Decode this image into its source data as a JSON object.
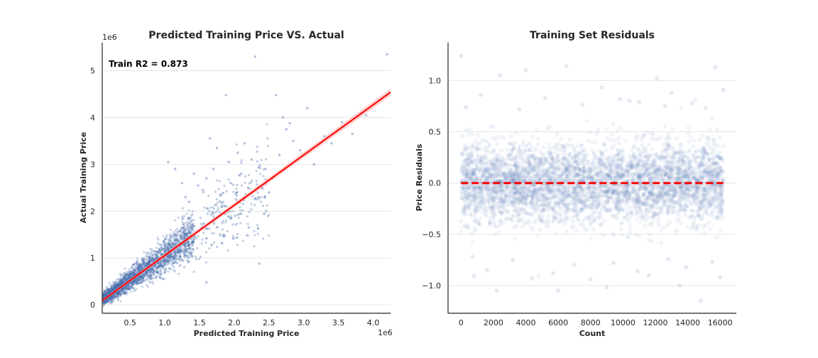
{
  "chart_data": [
    {
      "type": "scatter",
      "title": "Predicted Training Price VS. Actual",
      "xlabel": "Predicted Training Price",
      "ylabel": "Actual Training Price",
      "x_offset_label": "1e6",
      "y_offset_label": "1e6",
      "xlim": [
        100000,
        4250000
      ],
      "ylim": [
        -180000,
        5600000
      ],
      "x_ticks": [
        0.5,
        1.0,
        1.5,
        2.0,
        2.5,
        3.0,
        3.5,
        4.0
      ],
      "x_tick_labels": [
        "0.5",
        "1.0",
        "1.5",
        "2.0",
        "2.5",
        "3.0",
        "3.5",
        "4.0"
      ],
      "y_ticks": [
        0,
        1,
        2,
        3,
        4,
        5
      ],
      "y_tick_labels": [
        "0",
        "1",
        "2",
        "3",
        "4",
        "5"
      ],
      "grid": "horizontal",
      "annotation": "Train R2 = 0.873",
      "point_color": "#4c72b0",
      "fit_line_color": "#ff0000",
      "fit_line": {
        "x": [
          100000,
          4250000
        ],
        "y": [
          90000,
          4540000
        ]
      },
      "series": [
        {
          "points_x": [
            1650000,
            1750000,
            1880000,
            1920000,
            2050000,
            2100000,
            2150000,
            2250000,
            2300000,
            2400000,
            2450000,
            2500000,
            2550000,
            2600000,
            2650000,
            2700000,
            2750000,
            2800000,
            2850000,
            2950000,
            3050000,
            3150000,
            3300000,
            3400000,
            3550000,
            3700000,
            3900000,
            4200000,
            1050000,
            1150000,
            1250000,
            1300000,
            1350000,
            1420000,
            1480000,
            1550000,
            1600000,
            1700000,
            1800000,
            1950000,
            2200000,
            2350000,
            1600000,
            2010000,
            2210000,
            2460000,
            2360000,
            1850000
          ],
          "points_y": [
            3550000,
            3350000,
            4480000,
            3050000,
            3250000,
            2800000,
            3450000,
            3100000,
            5300000,
            2500000,
            2900000,
            2400000,
            2700000,
            4480000,
            3200000,
            4000000,
            3750000,
            3880000,
            3500000,
            3300000,
            4200000,
            3000000,
            3600000,
            3450000,
            3900000,
            3650000,
            4050000,
            5350000,
            3050000,
            2900000,
            2600000,
            2300000,
            2200000,
            2800000,
            2550000,
            2450000,
            2700000,
            2900000,
            2350000,
            2600000,
            2500000,
            2300000,
            480000,
            1900000,
            1650000,
            2000000,
            880000,
            1500000
          ]
        }
      ]
    },
    {
      "type": "scatter",
      "title": "Training Set Residuals",
      "xlabel": "Count",
      "ylabel": "Price Residuals",
      "xlim": [
        -800,
        17000
      ],
      "ylim": [
        -1.27,
        1.37
      ],
      "x_ticks": [
        0,
        2000,
        4000,
        6000,
        8000,
        10000,
        12000,
        14000,
        16000
      ],
      "x_tick_labels": [
        "0",
        "2000",
        "4000",
        "6000",
        "8000",
        "10000",
        "12000",
        "14000",
        "16000"
      ],
      "y_ticks": [
        -1.0,
        -0.5,
        0.0,
        0.5,
        1.0
      ],
      "y_tick_labels": [
        "−1.0",
        "−0.5",
        "0.0",
        "0.5",
        "1.0"
      ],
      "grid": "horizontal",
      "point_color": "#4c72b0",
      "reference_line": {
        "y": 0.0,
        "color": "#ff0000",
        "style": "dashed"
      },
      "series": [
        {
          "points_x": [
            0,
            2400,
            4000,
            6500,
            12100,
            15700,
            16200,
            1200,
            5200,
            8700,
            9800,
            11000,
            13000,
            14300,
            300,
            3600,
            7500,
            10400,
            12600,
            15100,
            2200,
            6000,
            9000,
            13500,
            800,
            4400,
            8000,
            11600,
            14800,
            16000,
            1600,
            5700,
            7000,
            10900,
            13900,
            700,
            3200,
            9400,
            12800,
            15500
          ],
          "points_y": [
            1.24,
            1.05,
            1.1,
            1.14,
            1.02,
            1.13,
            0.91,
            0.86,
            0.83,
            0.93,
            0.82,
            0.79,
            0.88,
            0.78,
            0.74,
            0.72,
            0.76,
            0.8,
            0.75,
            0.73,
            -1.05,
            -1.05,
            -1.02,
            -1.0,
            -0.91,
            -0.93,
            -0.94,
            -0.9,
            -1.15,
            -0.92,
            -0.85,
            -0.88,
            -0.8,
            -0.86,
            -0.82,
            -0.72,
            -0.75,
            -0.78,
            -0.74,
            -0.77
          ]
        }
      ]
    }
  ]
}
